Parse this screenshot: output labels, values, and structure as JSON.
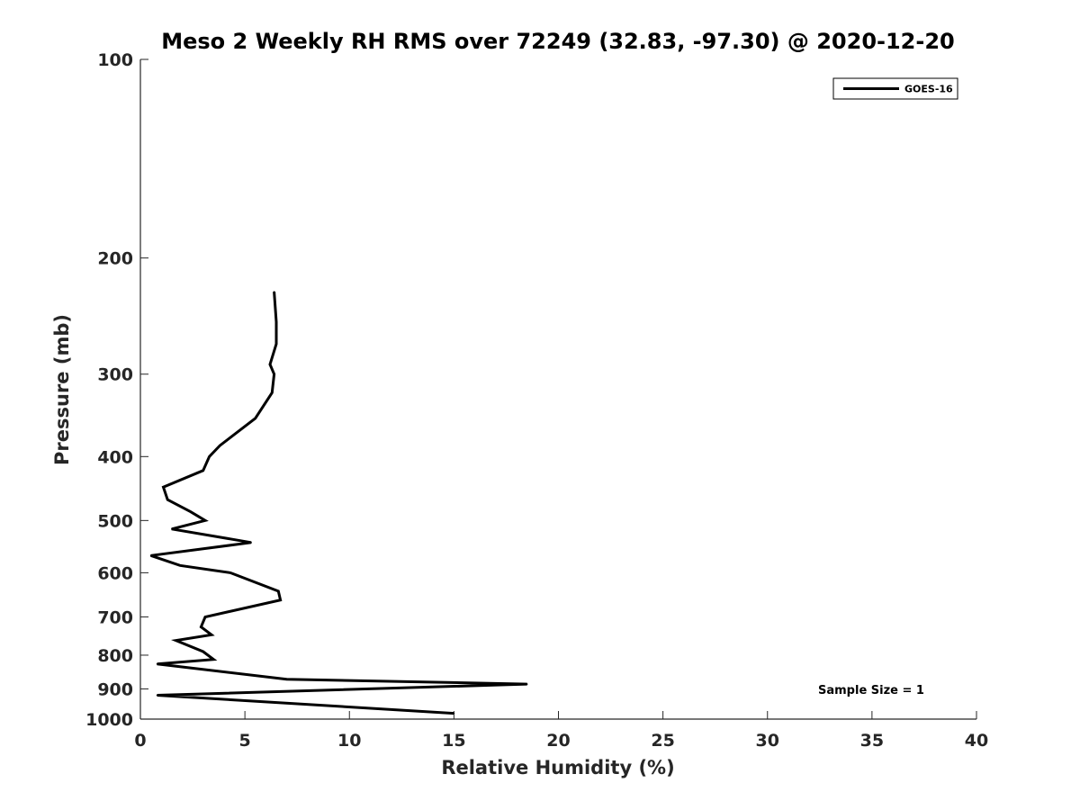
{
  "chart_data": {
    "type": "line",
    "title": "Meso 2 Weekly RH RMS over 72249 (32.83, -97.30) @ 2020-12-20",
    "xlabel": "Relative Humidity (%)",
    "ylabel": "Pressure (mb)",
    "xlim": [
      0,
      40
    ],
    "ylim": [
      100,
      1000
    ],
    "y_scale": "log",
    "y_reversed": true,
    "x_ticks": [
      0,
      5,
      10,
      15,
      20,
      25,
      30,
      35,
      40
    ],
    "y_ticks": [
      100,
      200,
      300,
      400,
      500,
      600,
      700,
      800,
      900,
      1000
    ],
    "grid": false,
    "legend_position": "top-right",
    "annotation": "Sample Size = 1",
    "series": [
      {
        "name": "GOES-16",
        "color": "#000000",
        "points": [
          {
            "x": 6.4,
            "y": 225
          },
          {
            "x": 6.5,
            "y": 250
          },
          {
            "x": 6.5,
            "y": 270
          },
          {
            "x": 6.2,
            "y": 290
          },
          {
            "x": 6.4,
            "y": 300
          },
          {
            "x": 6.3,
            "y": 320
          },
          {
            "x": 5.5,
            "y": 350
          },
          {
            "x": 3.8,
            "y": 385
          },
          {
            "x": 3.3,
            "y": 400
          },
          {
            "x": 3.0,
            "y": 420
          },
          {
            "x": 1.1,
            "y": 445
          },
          {
            "x": 1.3,
            "y": 465
          },
          {
            "x": 2.4,
            "y": 485
          },
          {
            "x": 3.1,
            "y": 500
          },
          {
            "x": 1.5,
            "y": 515
          },
          {
            "x": 5.3,
            "y": 540
          },
          {
            "x": 0.5,
            "y": 565
          },
          {
            "x": 1.9,
            "y": 585
          },
          {
            "x": 4.3,
            "y": 600
          },
          {
            "x": 6.6,
            "y": 640
          },
          {
            "x": 6.7,
            "y": 660
          },
          {
            "x": 3.1,
            "y": 700
          },
          {
            "x": 2.9,
            "y": 725
          },
          {
            "x": 3.4,
            "y": 745
          },
          {
            "x": 1.7,
            "y": 760
          },
          {
            "x": 3.0,
            "y": 790
          },
          {
            "x": 3.5,
            "y": 812
          },
          {
            "x": 0.8,
            "y": 825
          },
          {
            "x": 7.0,
            "y": 870
          },
          {
            "x": 18.5,
            "y": 885
          },
          {
            "x": 0.8,
            "y": 920
          },
          {
            "x": 15.0,
            "y": 980
          }
        ]
      }
    ]
  }
}
